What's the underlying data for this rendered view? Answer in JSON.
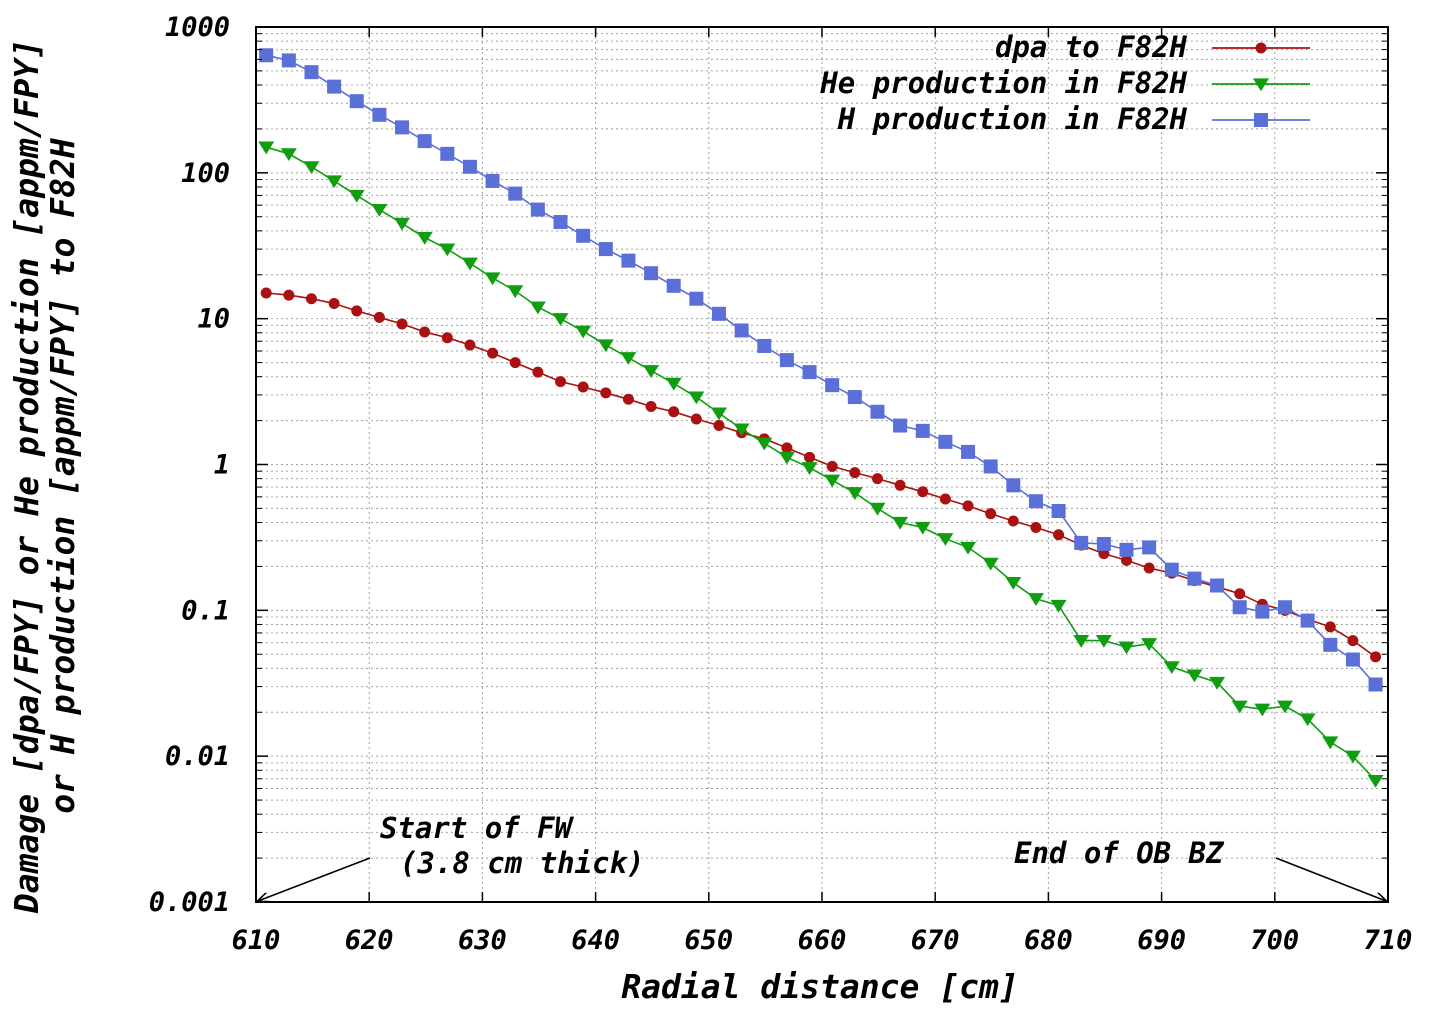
{
  "chart_data": {
    "type": "line",
    "title": "",
    "xlabel": "Radial distance [cm]",
    "ylabel": [
      "Damage [dpa/FPY] or He production [appm/FPY]",
      "or H production [appm/FPY] to F82H"
    ],
    "xlim": [
      610,
      710
    ],
    "ylim": [
      0.001,
      1000
    ],
    "y_scale": "log",
    "grid": true,
    "legend_position": "top-right",
    "x_ticks": [
      "610",
      "620",
      "630",
      "640",
      "650",
      "660",
      "670",
      "680",
      "690",
      "700",
      "710"
    ],
    "y_ticks": [
      "0.001",
      "0.01",
      "0.1",
      "1",
      "10",
      "100",
      "1000"
    ],
    "x": [
      610.9,
      612.9,
      614.9,
      616.9,
      618.9,
      620.9,
      622.9,
      624.9,
      626.9,
      628.9,
      630.9,
      632.9,
      634.9,
      636.9,
      638.9,
      640.9,
      642.9,
      644.9,
      646.9,
      648.9,
      650.9,
      652.9,
      654.9,
      656.9,
      658.9,
      660.9,
      662.9,
      664.9,
      666.9,
      668.9,
      670.9,
      672.9,
      674.9,
      676.9,
      678.9,
      680.9,
      682.9,
      684.9,
      686.9,
      688.9,
      690.9,
      692.9,
      694.9,
      696.9,
      698.9,
      700.9,
      702.9,
      704.9,
      706.9,
      708.9
    ],
    "series": [
      {
        "name": "dpa to F82H",
        "color": "#aa1111",
        "marker": "circle",
        "values": [
          15.0,
          14.5,
          13.7,
          12.7,
          11.3,
          10.2,
          9.2,
          8.1,
          7.4,
          6.6,
          5.8,
          5.0,
          4.3,
          3.7,
          3.4,
          3.1,
          2.8,
          2.5,
          2.3,
          2.05,
          1.85,
          1.65,
          1.5,
          1.3,
          1.12,
          0.97,
          0.88,
          0.8,
          0.72,
          0.65,
          0.58,
          0.52,
          0.46,
          0.41,
          0.37,
          0.33,
          0.28,
          0.245,
          0.22,
          0.195,
          0.18,
          0.16,
          0.145,
          0.13,
          0.11,
          0.1,
          0.087,
          0.077,
          0.062,
          0.048
        ]
      },
      {
        "name": "He production in F82H",
        "color": "#109e10",
        "marker": "triangle-down",
        "values": [
          150,
          135,
          110,
          88,
          70,
          56,
          45,
          36,
          30,
          24,
          19,
          15.5,
          12,
          10,
          8.2,
          6.6,
          5.4,
          4.4,
          3.6,
          2.9,
          2.25,
          1.75,
          1.4,
          1.12,
          0.95,
          0.78,
          0.64,
          0.5,
          0.4,
          0.37,
          0.31,
          0.27,
          0.21,
          0.155,
          0.12,
          0.108,
          0.062,
          0.062,
          0.056,
          0.059,
          0.041,
          0.036,
          0.032,
          0.022,
          0.021,
          0.022,
          0.018,
          0.0125,
          0.01,
          0.0068
        ]
      },
      {
        "name": "H production in F82H",
        "color": "#5a6fd8",
        "marker": "square",
        "values": [
          640,
          590,
          490,
          390,
          310,
          250,
          205,
          165,
          135,
          110,
          88,
          72,
          56,
          46,
          37,
          30,
          25,
          20.5,
          16.8,
          13.7,
          10.8,
          8.3,
          6.5,
          5.2,
          4.3,
          3.5,
          2.9,
          2.3,
          1.85,
          1.7,
          1.43,
          1.22,
          0.97,
          0.72,
          0.56,
          0.48,
          0.29,
          0.285,
          0.26,
          0.27,
          0.19,
          0.165,
          0.148,
          0.105,
          0.098,
          0.105,
          0.085,
          0.058,
          0.046,
          0.031
        ]
      }
    ],
    "annotations": [
      {
        "lines": [
          "Start of FW",
          "(3.8 cm thick)"
        ],
        "points_to": [
          610,
          0.001
        ]
      },
      {
        "lines": [
          "End of OB BZ"
        ],
        "points_to": [
          710,
          0.001
        ]
      }
    ]
  }
}
